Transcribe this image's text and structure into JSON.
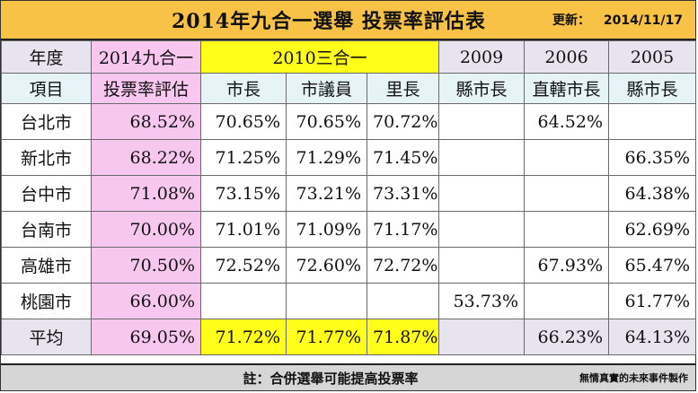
{
  "title": "2014年九合一選舉  投票率評估表",
  "updated_label": "更新：",
  "updated_date": "2014/11/17",
  "header_years": {
    "name_col": "年度",
    "y2014": "2014九合一",
    "y2010": "2010三合一",
    "y2009": "2009",
    "y2006": "2006",
    "y2005": "2005"
  },
  "header_sub": {
    "name_col": "項目",
    "y2014": "投票率評估",
    "mayor": "市長",
    "council": "市議員",
    "village": "里長",
    "y2009": "縣市長",
    "y2006": "直轄市長",
    "y2005": "縣市長"
  },
  "rows": [
    {
      "name": "台北市",
      "y2014": "68.52%",
      "mayor": "70.65%",
      "council": "70.65%",
      "village": "70.72%",
      "y2009": "",
      "y2006": "64.52%",
      "y2005": ""
    },
    {
      "name": "新北市",
      "y2014": "68.22%",
      "mayor": "71.25%",
      "council": "71.29%",
      "village": "71.45%",
      "y2009": "",
      "y2006": "",
      "y2005": "66.35%"
    },
    {
      "name": "台中市",
      "y2014": "71.08%",
      "mayor": "73.15%",
      "council": "73.21%",
      "village": "73.31%",
      "y2009": "",
      "y2006": "",
      "y2005": "64.38%"
    },
    {
      "name": "台南市",
      "y2014": "70.00%",
      "mayor": "71.01%",
      "council": "71.09%",
      "village": "71.17%",
      "y2009": "",
      "y2006": "",
      "y2005": "62.69%"
    },
    {
      "name": "高雄市",
      "y2014": "70.50%",
      "mayor": "72.52%",
      "council": "72.60%",
      "village": "72.72%",
      "y2009": "",
      "y2006": "67.93%",
      "y2005": "65.47%"
    },
    {
      "name": "桃園市",
      "y2014": "66.00%",
      "mayor": "",
      "council": "",
      "village": "",
      "y2009": "53.73%",
      "y2006": "",
      "y2005": "61.77%"
    }
  ],
  "average": {
    "name": "平均",
    "y2014": "69.05%",
    "mayor": "71.72%",
    "council": "71.77%",
    "village": "71.87%",
    "y2009": "",
    "y2006": "66.23%",
    "y2005": "64.13%"
  },
  "footer_note": "註：合併選舉可能提高投票率",
  "footer_credit": "無情真實的未來事件製作",
  "colors": {
    "title_bg": "#f7c245",
    "highlight_pink": "#f8c7f0",
    "highlight_yellow": "#ffff1a",
    "header_lavender": "#e7e3ef",
    "header_lightblue": "#e6f4f8",
    "footer_gray": "#d6d6d6"
  }
}
